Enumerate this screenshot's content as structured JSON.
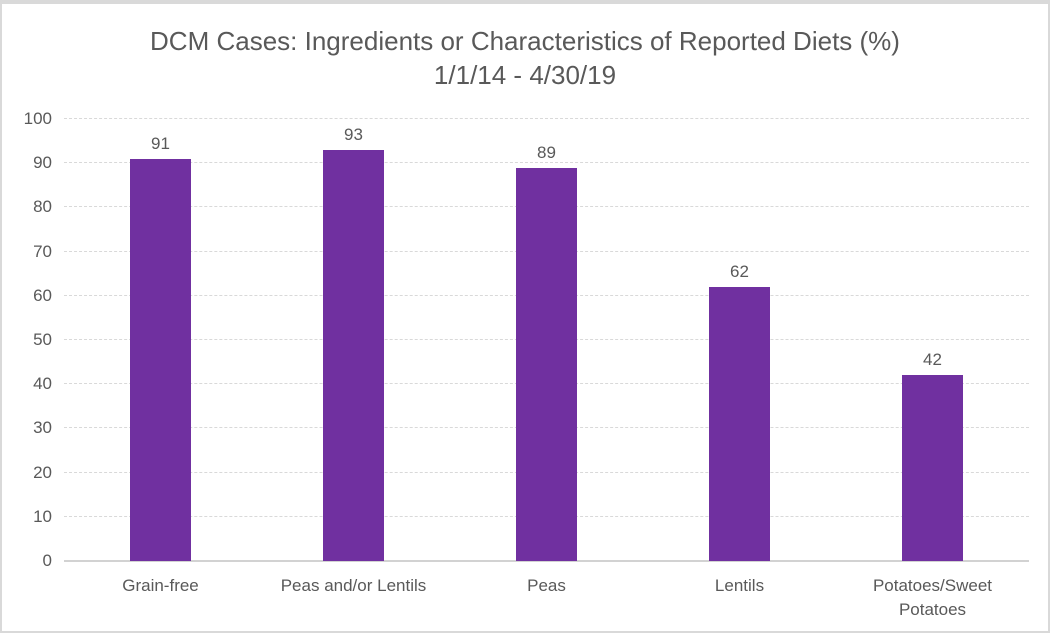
{
  "chart_data": {
    "type": "bar",
    "title": "DCM Cases: Ingredients or Characteristics of Reported Diets (%)",
    "subtitle": "1/1/14 - 4/30/19",
    "categories": [
      "Grain-free",
      "Peas and/or Lentils",
      "Peas",
      "Lentils",
      "Potatoes/Sweet Potatoes"
    ],
    "values": [
      91,
      93,
      89,
      62,
      42
    ],
    "data_labels": [
      "91",
      "93",
      "89",
      "62",
      "42"
    ],
    "xlabel": "",
    "ylabel": "",
    "ylim": [
      0,
      100
    ],
    "yticks": [
      0,
      10,
      20,
      30,
      40,
      50,
      60,
      70,
      80,
      90,
      100
    ],
    "grid": true,
    "legend": false,
    "bar_color": "#7030a0",
    "text_color": "#595959",
    "gridline_color": "#d9d9d9",
    "axis_line_color": "#d2d2d2",
    "background_color": "#ffffff"
  }
}
